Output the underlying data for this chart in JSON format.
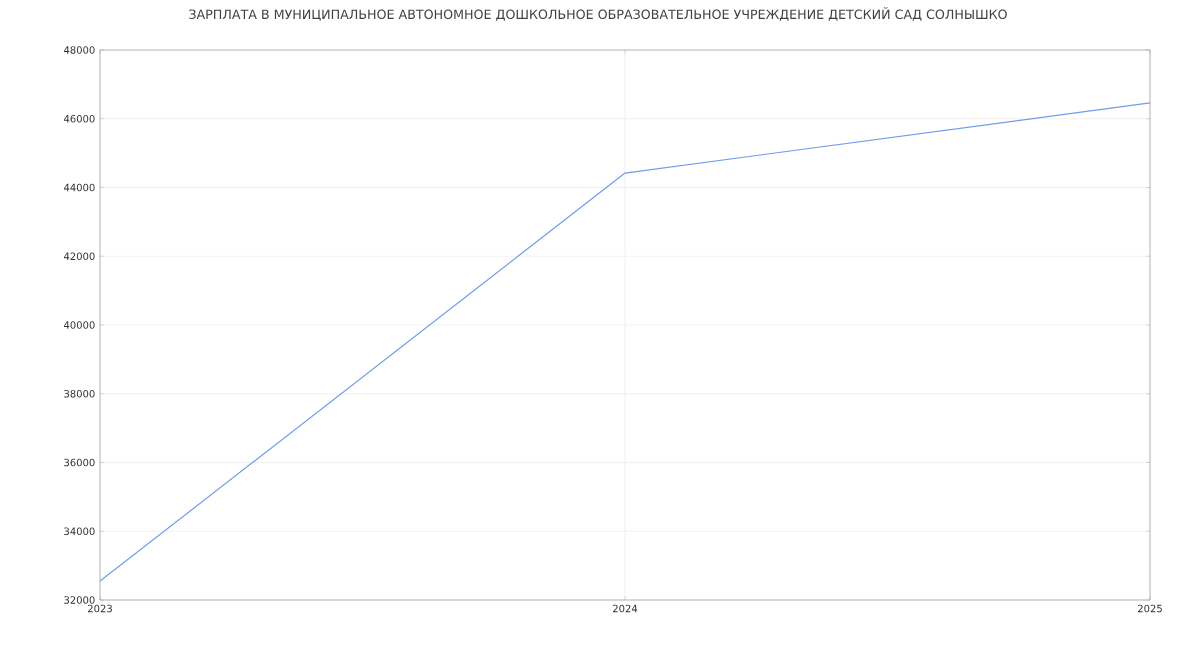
{
  "chart_data": {
    "type": "line",
    "title": "ЗАРПЛАТА В МУНИЦИПАЛЬНОЕ АВТОНОМНОЕ ДОШКОЛЬНОЕ ОБРАЗОВАТЕЛЬНОЕ УЧРЕЖДЕНИЕ ДЕТСКИЙ САД СОЛНЫШКО",
    "x": [
      2023,
      2024,
      2025
    ],
    "series": [
      {
        "color": "#6f9cf0",
        "values": [
          32550,
          44420,
          46460
        ]
      }
    ],
    "xlim": [
      2023,
      2025
    ],
    "xticks": [
      2023,
      2024,
      2025
    ],
    "ylim": [
      32000,
      48000
    ],
    "yticks": [
      32000,
      34000,
      36000,
      38000,
      40000,
      42000,
      44000,
      46000,
      48000
    ],
    "grid": true,
    "marker": "none",
    "line_style": "solid"
  }
}
